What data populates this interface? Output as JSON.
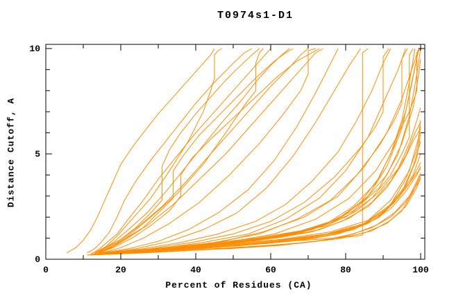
{
  "title": "T0974s1-D1",
  "axes": {
    "xlabel": "Percent of Residues (CA)",
    "ylabel": "Distance Cutoff, A"
  },
  "chart_data": {
    "type": "line",
    "title": "T0974s1-D1",
    "xlabel": "Percent of Residues (CA)",
    "ylabel": "Distance Cutoff, A",
    "xlim": [
      0,
      101.2
    ],
    "ylim": [
      0,
      10.2
    ],
    "x_major_ticks": [
      0,
      20,
      40,
      60,
      80,
      100
    ],
    "x_minor_ticks": [
      10,
      30,
      50,
      70,
      90
    ],
    "y_major_ticks": [
      0,
      5,
      10
    ],
    "y_minor_ticks": [
      1,
      2,
      3,
      4,
      6,
      7,
      8,
      9
    ],
    "grid": false,
    "legend": "none",
    "line_color": "#ff8c00",
    "axis_color": "#000000",
    "background_color": "#ffffff",
    "series": [
      {
        "x": [
          5.5,
          8,
          10,
          12,
          14,
          16,
          18,
          20,
          23,
          26,
          30,
          34,
          38,
          41,
          44,
          45
        ],
        "y": [
          0.3,
          0.55,
          0.9,
          1.4,
          2.1,
          2.9,
          3.7,
          4.5,
          5.3,
          6.0,
          6.9,
          7.7,
          8.5,
          9.1,
          9.7,
          10
        ]
      },
      {
        "x": [
          11,
          13,
          15,
          17,
          19,
          21,
          24,
          28,
          32,
          36,
          40,
          45,
          50,
          53,
          55
        ],
        "y": [
          0.3,
          0.5,
          0.85,
          1.3,
          2.0,
          2.8,
          3.7,
          4.7,
          5.6,
          6.5,
          7.4,
          8.4,
          9.3,
          9.8,
          10
        ]
      },
      {
        "x": [
          12,
          14,
          16,
          19,
          22,
          26,
          30,
          35,
          40,
          45,
          50,
          55,
          58,
          60
        ],
        "y": [
          0.25,
          0.45,
          0.75,
          1.2,
          1.9,
          2.8,
          3.8,
          4.9,
          6.0,
          7.0,
          8.0,
          9.0,
          9.6,
          10
        ]
      },
      {
        "x": [
          13,
          15,
          18,
          22,
          27,
          32,
          37,
          42,
          47,
          52,
          56,
          60,
          63,
          65
        ],
        "y": [
          0.25,
          0.45,
          0.8,
          1.4,
          2.2,
          3.2,
          4.3,
          5.4,
          6.5,
          7.5,
          8.4,
          9.2,
          9.7,
          10
        ]
      },
      {
        "x": [
          13,
          16,
          20,
          25,
          31,
          37,
          43,
          49,
          55,
          60,
          65,
          68,
          70
        ],
        "y": [
          0.25,
          0.5,
          0.9,
          1.6,
          2.5,
          3.6,
          4.8,
          6.0,
          7.2,
          8.2,
          9.1,
          9.7,
          10
        ]
      },
      {
        "x": [
          14,
          17,
          21,
          27,
          34,
          41,
          48,
          54,
          60,
          65,
          69,
          72,
          74
        ],
        "y": [
          0.25,
          0.5,
          0.9,
          1.6,
          2.6,
          3.8,
          5.0,
          6.2,
          7.4,
          8.4,
          9.2,
          9.8,
          10
        ]
      },
      {
        "x": [
          13,
          16,
          19,
          23,
          28,
          33,
          38,
          42,
          44,
          45,
          45,
          46,
          47
        ],
        "y": [
          0.3,
          0.6,
          1.1,
          1.9,
          2.9,
          4.2,
          5.6,
          7.0,
          8.0,
          8.6,
          9.7,
          9.9,
          10
        ]
      },
      {
        "x": [
          14,
          18,
          22,
          28,
          35,
          42,
          48,
          53,
          56,
          56,
          57,
          58
        ],
        "y": [
          0.3,
          0.6,
          1.1,
          2.0,
          3.1,
          4.5,
          6.0,
          7.3,
          8.0,
          9.3,
          9.8,
          10
        ]
      },
      {
        "x": [
          15,
          20,
          26,
          33,
          41,
          49,
          57,
          63,
          68,
          70,
          70,
          72
        ],
        "y": [
          0.3,
          0.55,
          1.0,
          1.7,
          2.7,
          4.0,
          5.5,
          6.8,
          8.0,
          8.8,
          9.9,
          10
        ]
      },
      {
        "x": [
          15,
          22,
          30,
          38,
          46,
          54,
          61,
          67,
          72,
          76,
          78
        ],
        "y": [
          0.3,
          0.5,
          0.85,
          1.4,
          2.2,
          3.3,
          4.7,
          6.3,
          7.9,
          9.3,
          10
        ]
      },
      {
        "x": [
          16,
          24,
          33,
          42,
          51,
          59,
          66,
          72,
          77,
          81,
          84
        ],
        "y": [
          0.3,
          0.5,
          0.85,
          1.4,
          2.2,
          3.4,
          4.9,
          6.5,
          8.0,
          9.2,
          10
        ]
      },
      {
        "x": [
          18,
          30,
          42,
          54,
          64,
          73,
          80,
          83,
          84.5,
          84.5,
          86
        ],
        "y": [
          0.25,
          0.4,
          0.55,
          0.7,
          0.85,
          0.95,
          1.05,
          1.1,
          1.15,
          9.8,
          10
        ]
      },
      {
        "x": [
          17,
          26,
          36,
          46,
          56,
          64,
          71,
          78,
          83,
          87,
          90,
          92
        ],
        "y": [
          0.3,
          0.5,
          0.8,
          1.2,
          1.8,
          2.6,
          3.7,
          5.1,
          6.6,
          8.0,
          9.3,
          10
        ]
      },
      {
        "x": [
          18,
          28,
          39,
          50,
          60,
          69,
          77,
          84,
          88,
          90,
          90,
          91.5
        ],
        "y": [
          0.3,
          0.5,
          0.8,
          1.2,
          1.8,
          2.7,
          3.9,
          5.3,
          6.3,
          7.0,
          9.6,
          10
        ]
      },
      {
        "x": [
          19,
          30,
          42,
          54,
          64,
          73,
          80,
          86,
          90,
          94,
          96
        ],
        "y": [
          0.3,
          0.5,
          0.8,
          1.2,
          1.9,
          2.9,
          4.2,
          5.8,
          7.4,
          9.0,
          10
        ]
      },
      {
        "x": [
          20,
          32,
          45,
          57,
          67,
          76,
          83,
          89,
          93,
          95,
          95,
          96.5
        ],
        "y": [
          0.3,
          0.5,
          0.8,
          1.2,
          1.9,
          2.8,
          4.0,
          5.4,
          6.6,
          7.4,
          9.5,
          10
        ]
      },
      {
        "x": [
          20,
          33,
          46,
          58,
          69,
          78,
          85,
          91,
          95,
          98,
          99.5
        ],
        "y": [
          0.3,
          0.5,
          0.8,
          1.3,
          2.0,
          3.0,
          4.4,
          6.0,
          7.6,
          9.2,
          10
        ]
      },
      {
        "x": [
          21,
          34,
          48,
          61,
          72,
          81,
          88,
          93,
          97,
          99,
          99,
          100
        ],
        "y": [
          0.3,
          0.5,
          0.8,
          1.2,
          1.9,
          2.9,
          4.2,
          5.6,
          7.0,
          8.0,
          9.8,
          10
        ]
      },
      {
        "x": [
          12,
          24,
          38,
          52,
          65,
          75,
          83,
          89,
          94,
          97,
          99,
          100
        ],
        "y": [
          0.25,
          0.35,
          0.5,
          0.65,
          0.85,
          1.1,
          1.5,
          2.1,
          2.9,
          3.6,
          4.1,
          4.3
        ]
      },
      {
        "x": [
          13,
          26,
          41,
          55,
          68,
          78,
          86,
          92,
          96,
          99,
          100
        ],
        "y": [
          0.25,
          0.35,
          0.5,
          0.7,
          0.9,
          1.2,
          1.7,
          2.4,
          3.2,
          4.0,
          4.4
        ]
      },
      {
        "x": [
          13,
          27,
          42,
          57,
          70,
          80,
          88,
          93,
          97,
          99.5,
          100
        ],
        "y": [
          0.25,
          0.4,
          0.55,
          0.75,
          1.0,
          1.35,
          1.9,
          2.7,
          3.6,
          4.4,
          4.6
        ]
      },
      {
        "x": [
          14,
          28,
          44,
          59,
          72,
          82,
          89,
          94,
          98,
          100
        ],
        "y": [
          0.25,
          0.4,
          0.55,
          0.75,
          1.0,
          1.4,
          2.0,
          2.9,
          4.0,
          5.0
        ]
      },
      {
        "x": [
          14,
          29,
          45,
          60,
          73,
          83,
          90,
          95,
          98,
          100
        ],
        "y": [
          0.3,
          0.45,
          0.6,
          0.8,
          1.1,
          1.5,
          2.2,
          3.2,
          4.4,
          5.6
        ]
      },
      {
        "x": [
          15,
          30,
          46,
          61,
          74,
          84,
          91,
          96,
          99,
          100
        ],
        "y": [
          0.3,
          0.45,
          0.65,
          0.85,
          1.15,
          1.6,
          2.4,
          3.5,
          4.8,
          6.0
        ]
      },
      {
        "x": [
          15,
          31,
          47,
          62,
          75,
          85,
          92,
          96,
          99,
          100
        ],
        "y": [
          0.3,
          0.5,
          0.7,
          0.9,
          1.2,
          1.7,
          2.6,
          3.8,
          5.2,
          6.3
        ]
      },
      {
        "x": [
          16,
          32,
          48,
          63,
          76,
          86,
          92,
          97,
          99.5,
          100
        ],
        "y": [
          0.3,
          0.5,
          0.7,
          0.95,
          1.3,
          1.85,
          2.8,
          4.2,
          5.8,
          6.6
        ]
      },
      {
        "x": [
          12,
          25,
          40,
          54,
          67,
          77,
          85,
          91,
          95,
          98,
          100
        ],
        "y": [
          0.2,
          0.3,
          0.45,
          0.6,
          0.75,
          0.95,
          1.25,
          1.7,
          2.3,
          3.2,
          4.0
        ]
      },
      {
        "x": [
          12,
          26,
          42,
          56,
          69,
          79,
          87,
          92,
          96,
          99,
          100
        ],
        "y": [
          0.2,
          0.3,
          0.45,
          0.6,
          0.8,
          1.0,
          1.35,
          1.85,
          2.5,
          3.4,
          3.9
        ]
      },
      {
        "x": [
          11,
          23,
          37,
          51,
          64,
          74,
          82,
          88,
          93,
          97,
          99,
          100
        ],
        "y": [
          0.2,
          0.3,
          0.4,
          0.55,
          0.7,
          0.9,
          1.2,
          1.6,
          2.2,
          3.0,
          3.7,
          4.1
        ]
      },
      {
        "x": [
          11,
          22,
          35,
          49,
          62,
          72,
          80,
          87,
          92,
          96,
          98.5,
          100
        ],
        "y": [
          0.2,
          0.3,
          0.4,
          0.5,
          0.65,
          0.85,
          1.1,
          1.5,
          2.0,
          2.7,
          3.4,
          3.8
        ]
      },
      {
        "x": [
          16,
          28,
          42,
          55,
          66,
          75,
          82,
          88,
          92,
          95,
          97,
          98.5
        ],
        "y": [
          0.3,
          0.45,
          0.65,
          0.9,
          1.2,
          1.7,
          2.5,
          3.6,
          5.0,
          6.6,
          8.4,
          10
        ]
      },
      {
        "x": [
          17,
          30,
          44,
          57,
          68,
          77,
          84,
          89,
          93,
          96,
          98,
          99.5
        ],
        "y": [
          0.3,
          0.45,
          0.65,
          0.9,
          1.25,
          1.8,
          2.7,
          3.9,
          5.4,
          7.0,
          8.7,
          10
        ]
      },
      {
        "x": [
          18,
          31,
          45,
          58,
          70,
          79,
          86,
          91,
          95,
          97.5,
          99.5
        ],
        "y": [
          0.3,
          0.5,
          0.7,
          1.0,
          1.4,
          2.0,
          3.0,
          4.4,
          6.2,
          8.2,
          10
        ]
      },
      {
        "x": [
          19,
          32,
          46,
          60,
          71,
          80,
          87,
          92,
          95,
          97,
          97,
          98
        ],
        "y": [
          0.3,
          0.5,
          0.7,
          1.0,
          1.4,
          2.0,
          2.9,
          4.0,
          5.0,
          5.8,
          9.7,
          10
        ]
      },
      {
        "x": [
          20,
          34,
          48,
          62,
          73,
          82,
          89,
          94,
          97,
          99,
          100
        ],
        "y": [
          0.35,
          0.55,
          0.8,
          1.1,
          1.55,
          2.3,
          3.4,
          5.0,
          6.8,
          8.8,
          10
        ]
      },
      {
        "x": [
          13,
          16,
          20,
          24,
          28,
          31,
          31,
          33,
          36,
          40,
          44,
          48,
          52,
          55,
          57
        ],
        "y": [
          0.3,
          0.55,
          0.95,
          1.5,
          2.2,
          2.8,
          4.4,
          5.2,
          6.0,
          6.9,
          7.7,
          8.5,
          9.2,
          9.7,
          10
        ]
      },
      {
        "x": [
          14,
          17,
          21,
          26,
          30,
          34,
          34,
          37,
          41,
          46,
          51,
          56,
          61,
          64,
          66
        ],
        "y": [
          0.3,
          0.55,
          0.95,
          1.5,
          2.2,
          2.9,
          4.2,
          5.0,
          5.9,
          6.8,
          7.7,
          8.6,
          9.4,
          9.8,
          10
        ]
      },
      {
        "x": [
          14,
          18,
          23,
          28,
          33,
          36,
          36,
          39,
          44,
          50,
          56,
          62,
          67,
          71,
          73
        ],
        "y": [
          0.3,
          0.55,
          1.0,
          1.6,
          2.3,
          3.0,
          4.0,
          4.8,
          5.7,
          6.7,
          7.7,
          8.7,
          9.4,
          9.8,
          10
        ]
      },
      {
        "x": [
          13,
          24,
          36,
          49,
          61,
          71,
          79,
          86,
          91,
          95,
          98,
          100
        ],
        "y": [
          0.25,
          0.4,
          0.55,
          0.75,
          1.0,
          1.3,
          1.8,
          2.5,
          3.4,
          4.5,
          5.6,
          6.2
        ]
      },
      {
        "x": [
          14,
          25,
          38,
          51,
          63,
          73,
          81,
          87,
          92,
          96,
          98.5,
          100
        ],
        "y": [
          0.25,
          0.4,
          0.6,
          0.8,
          1.05,
          1.4,
          1.95,
          2.7,
          3.7,
          4.9,
          6.0,
          6.5
        ]
      },
      {
        "x": [
          15,
          27,
          40,
          53,
          65,
          75,
          83,
          89,
          94,
          97,
          99,
          100
        ],
        "y": [
          0.3,
          0.45,
          0.65,
          0.9,
          1.2,
          1.6,
          2.3,
          3.2,
          4.3,
          5.5,
          6.6,
          7.2
        ]
      },
      {
        "x": [
          16,
          29,
          43,
          56,
          68,
          78,
          85,
          91,
          95,
          98,
          99.5,
          100
        ],
        "y": [
          0.3,
          0.5,
          0.75,
          1.0,
          1.35,
          1.9,
          2.8,
          4.0,
          5.5,
          7.2,
          8.8,
          9.5
        ]
      }
    ]
  }
}
